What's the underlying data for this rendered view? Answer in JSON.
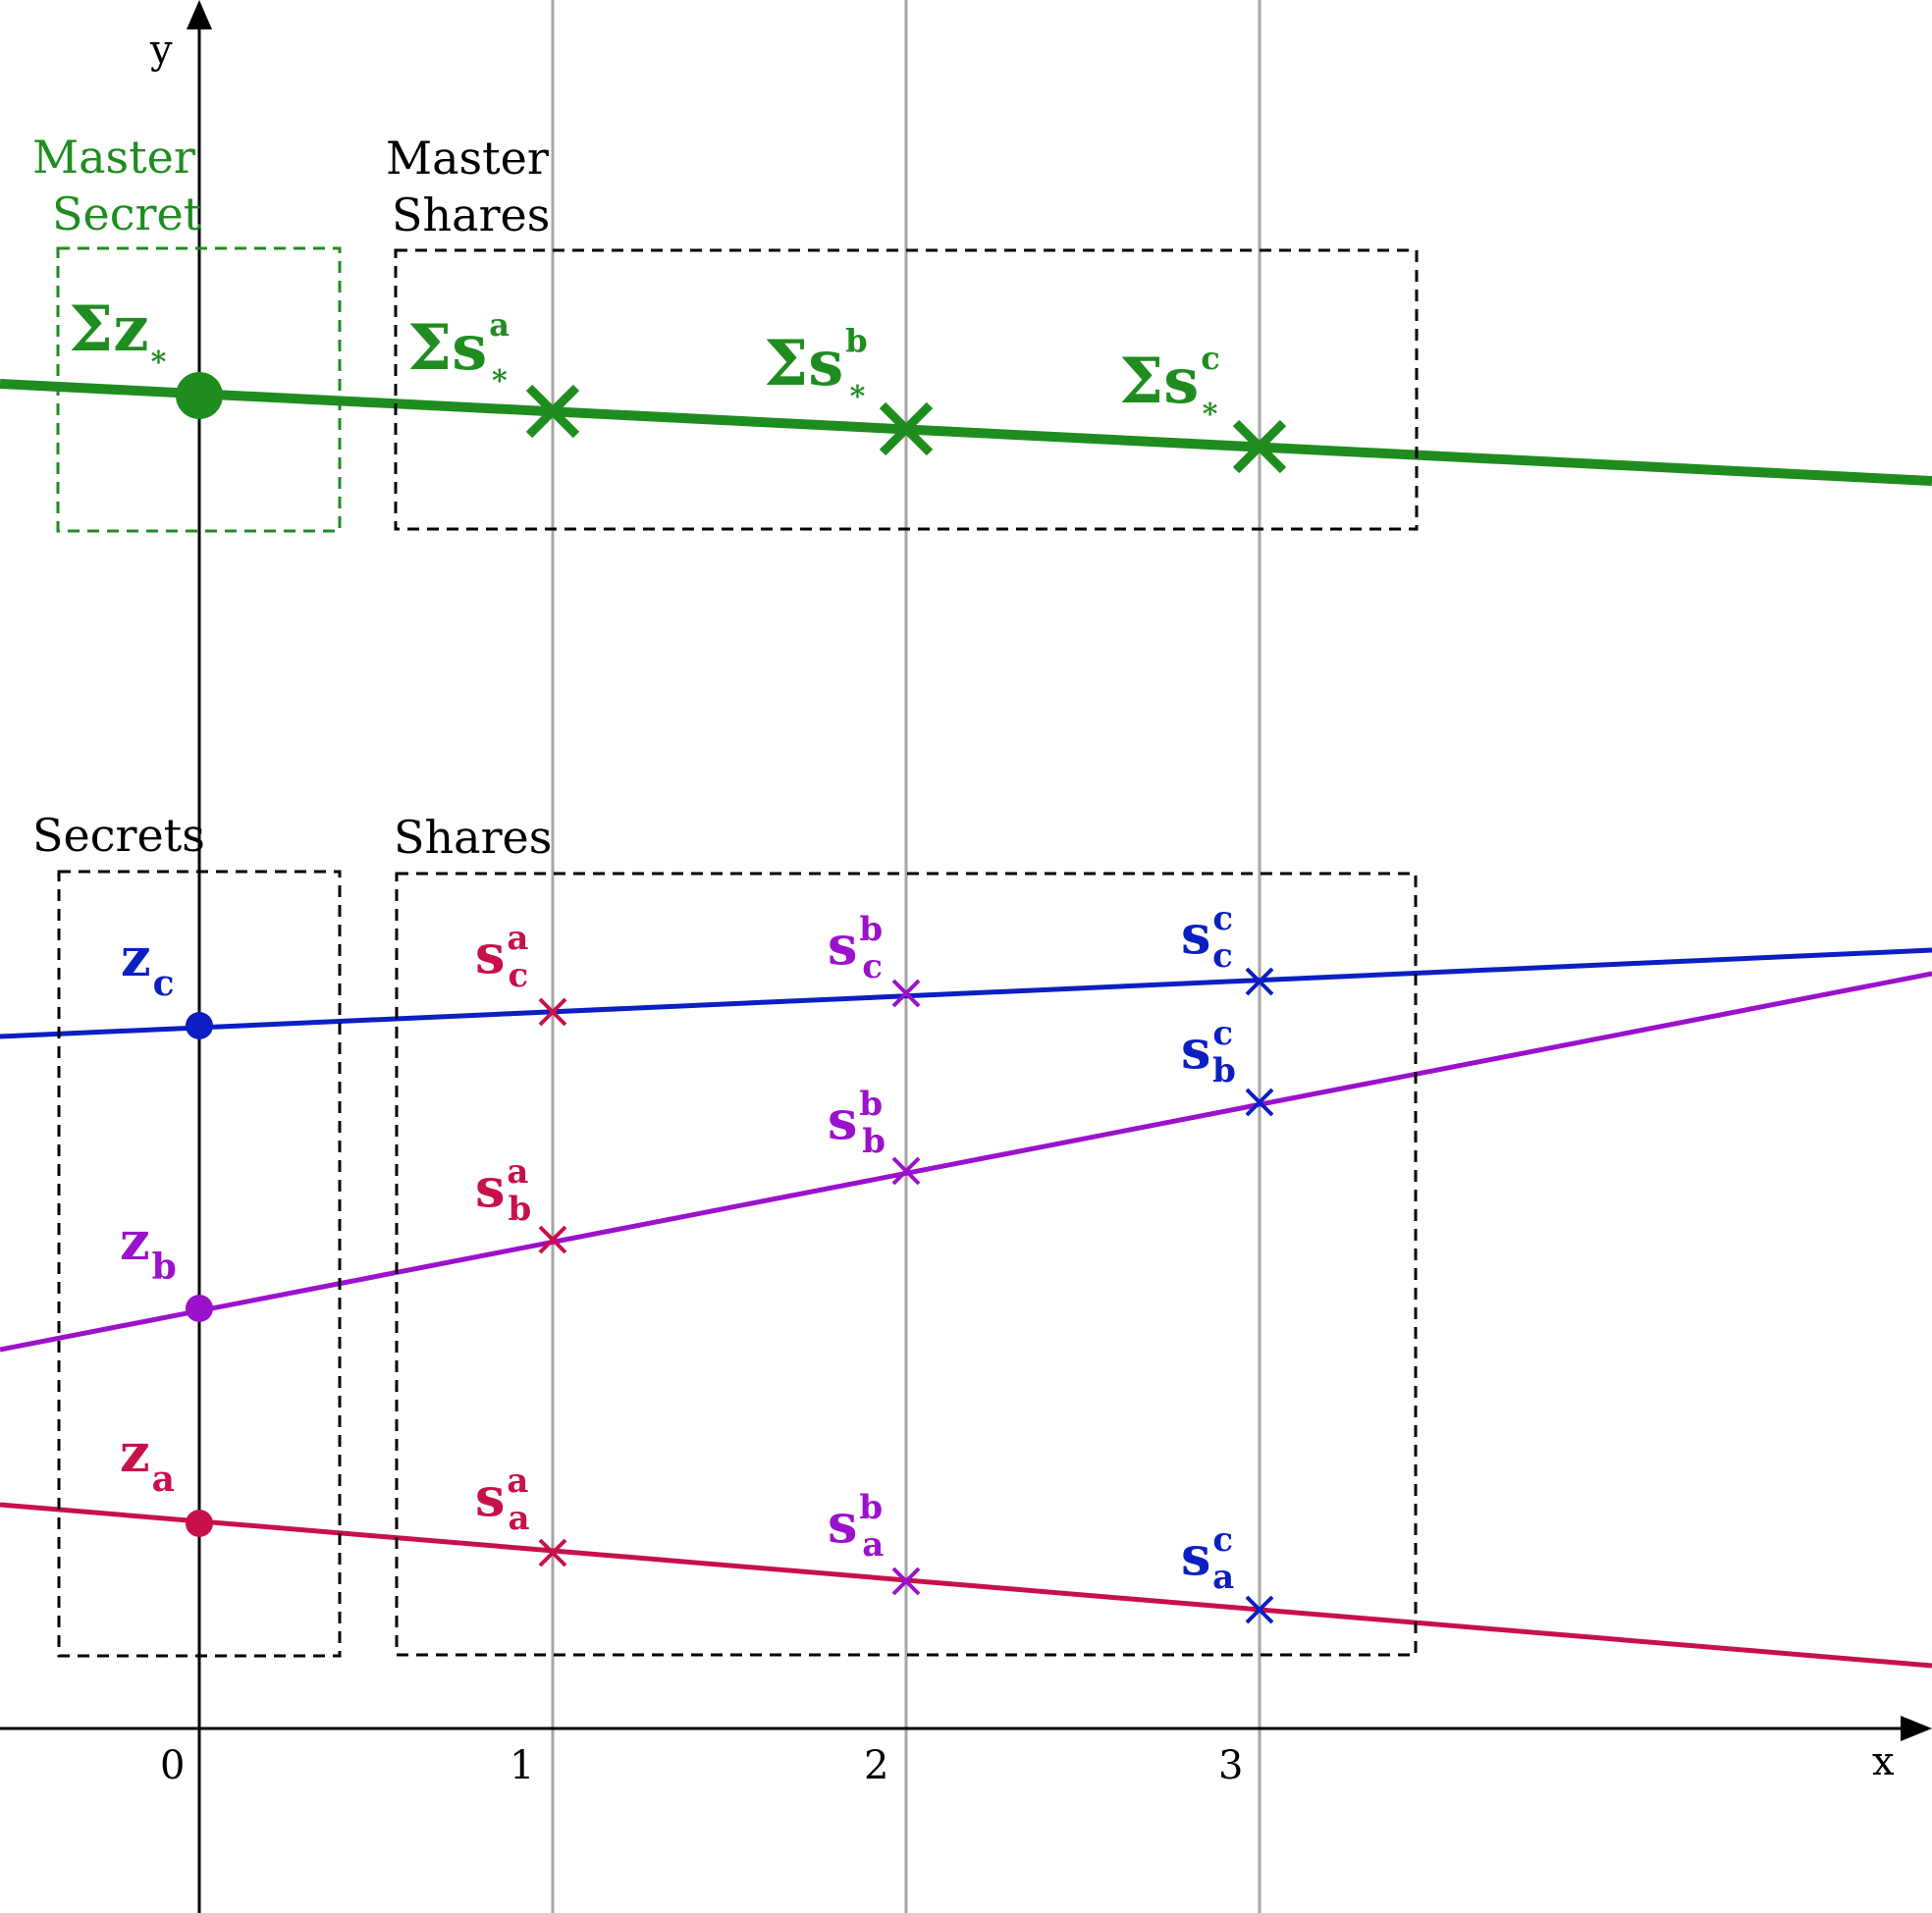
{
  "colors": {
    "master": "#1f8c1f",
    "red": "#c8104a",
    "purple": "#9b11cc",
    "blue": "#0b1fc2",
    "grid": "#a6a6a6",
    "axis": "#000000"
  },
  "axes": {
    "x_label": "x",
    "y_label": "y",
    "x_ticks": [
      "0",
      "1",
      "2",
      "3"
    ]
  },
  "boxes": {
    "master_secret": {
      "line1": "Master",
      "line2": "Secret"
    },
    "master_shares": {
      "line1": "Master",
      "line2": "Shares"
    },
    "secrets": {
      "label": "Secrets"
    },
    "shares": {
      "label": "Shares"
    }
  },
  "master": {
    "secret": {
      "sigma": "Σ",
      "base": "z",
      "sub": "*"
    },
    "shares": [
      {
        "sigma": "Σ",
        "base": "s",
        "sup": "a",
        "sub": "*"
      },
      {
        "sigma": "Σ",
        "base": "s",
        "sup": "b",
        "sub": "*"
      },
      {
        "sigma": "Σ",
        "base": "s",
        "sup": "c",
        "sub": "*"
      }
    ]
  },
  "secrets": [
    {
      "base": "z",
      "sub": "c"
    },
    {
      "base": "z",
      "sub": "b"
    },
    {
      "base": "z",
      "sub": "a"
    }
  ],
  "shares": [
    {
      "base": "s",
      "sup": "a",
      "sub": "c"
    },
    {
      "base": "s",
      "sup": "b",
      "sub": "c"
    },
    {
      "base": "s",
      "sup": "c",
      "sub": "c"
    },
    {
      "base": "s",
      "sup": "a",
      "sub": "b"
    },
    {
      "base": "s",
      "sup": "b",
      "sub": "b"
    },
    {
      "base": "s",
      "sup": "c",
      "sub": "b"
    },
    {
      "base": "s",
      "sup": "a",
      "sub": "a"
    },
    {
      "base": "s",
      "sup": "b",
      "sub": "a"
    },
    {
      "base": "s",
      "sup": "c",
      "sub": "a"
    }
  ]
}
